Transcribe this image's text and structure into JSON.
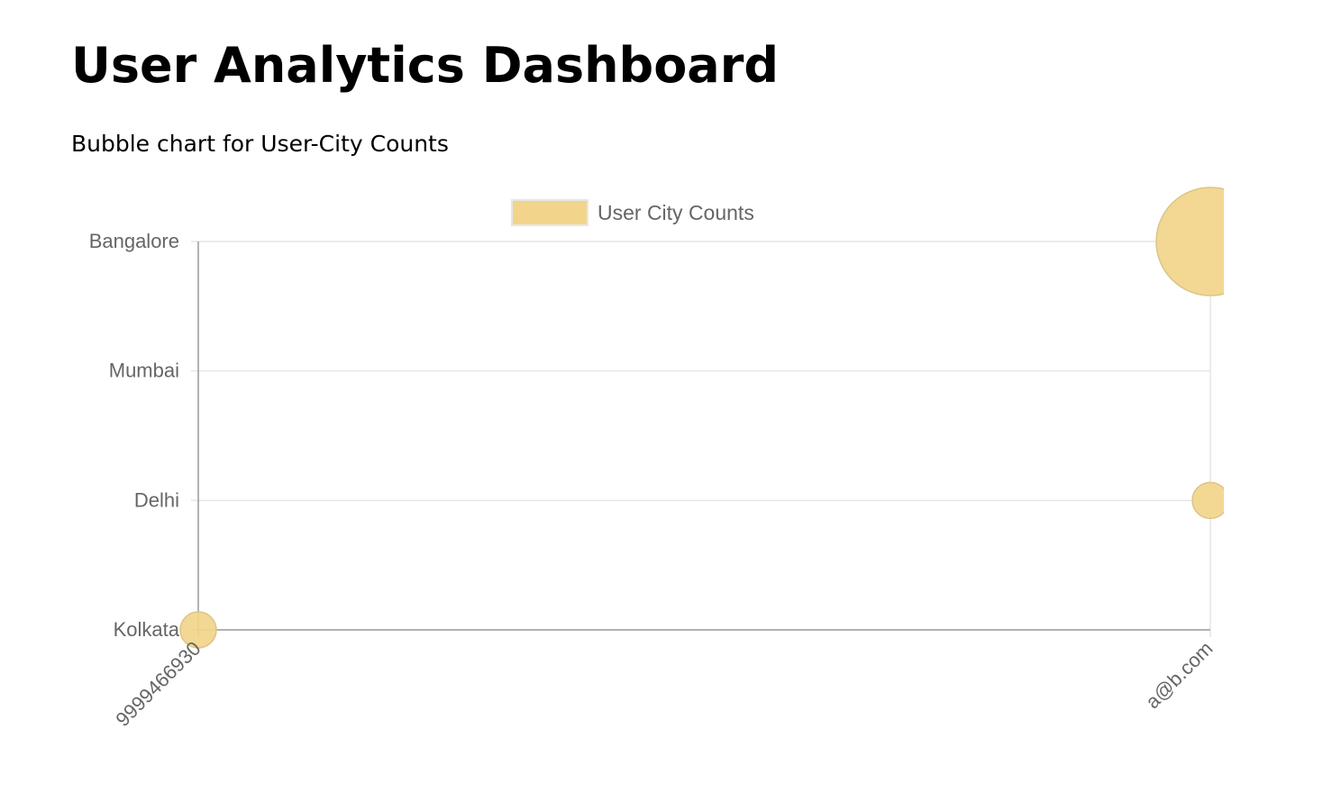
{
  "page": {
    "title": "User Analytics Dashboard",
    "subtitle": "Bubble chart for User-City Counts"
  },
  "chart_data": {
    "type": "bubble",
    "x_categories": [
      "9999466930",
      "a@b.com"
    ],
    "y_categories": [
      "Kolkata",
      "Delhi",
      "Mumbai",
      "Bangalore"
    ],
    "series": [
      {
        "name": "User City Counts",
        "points": [
          {
            "x": "9999466930",
            "y": "Kolkata",
            "r": 20
          },
          {
            "x": "a@b.com",
            "y": "Delhi",
            "r": 20
          },
          {
            "x": "a@b.com",
            "y": "Bangalore",
            "r": 60
          }
        ]
      }
    ],
    "grid": true,
    "legend_position": "top-center",
    "colors": {
      "bubble_fill": "#f2d58b",
      "bubble_stroke": "#dcc487",
      "grid": "#e6e6e6",
      "axis": "#999999",
      "label": "#666666"
    }
  }
}
